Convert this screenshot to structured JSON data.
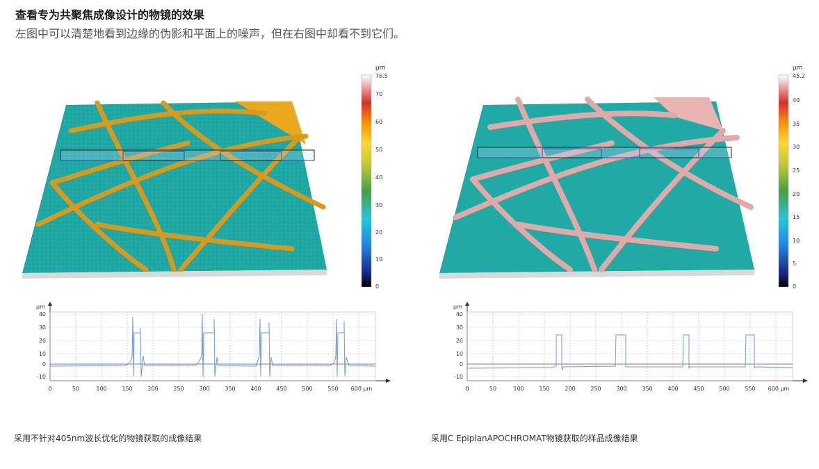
{
  "header": {
    "title": "查看专为共聚焦成像设计的物镜的效果",
    "subtitle": "左图中可以清楚地看到边缘的伪影和平面上的噪声，但在右图中却看不到它们。"
  },
  "panels": [
    {
      "caption": "采用不针对405nm波长优化的物镜获取的成像结果",
      "colorbar": {
        "unit": "µm",
        "max_label": "76.5",
        "ticks": [
          "70",
          "60",
          "50",
          "40",
          "30",
          "20",
          "10",
          "0"
        ]
      },
      "profile": {
        "y_unit": "µm",
        "y_ticks": [
          "40",
          "30",
          "20",
          "10",
          "0",
          "-10"
        ],
        "x_ticks": [
          "0",
          "50",
          "100",
          "150",
          "200",
          "250",
          "300",
          "350",
          "400",
          "450",
          "500",
          "550",
          "600 µm"
        ]
      }
    },
    {
      "caption": "采用C EpiplanAPOCHROMAT物镜获取的样品成像结果",
      "colorbar": {
        "unit": "µm",
        "max_label": "45.2",
        "ticks": [
          "40",
          "35",
          "30",
          "25",
          "20",
          "15",
          "10",
          "5",
          "0"
        ]
      },
      "profile": {
        "y_unit": "µm",
        "y_ticks": [
          "40",
          "30",
          "20",
          "10",
          "0",
          "-10"
        ],
        "x_ticks": [
          "0",
          "50",
          "100",
          "150",
          "200",
          "250",
          "300",
          "350",
          "400",
          "450",
          "500",
          "550",
          "600 µm"
        ]
      }
    }
  ],
  "colors": {
    "surface_base": "#1fa8a4",
    "ridge_left": "#e4a21e",
    "ridge_right": "#e8b4b4",
    "profile_line": "#6f9ad6"
  }
}
